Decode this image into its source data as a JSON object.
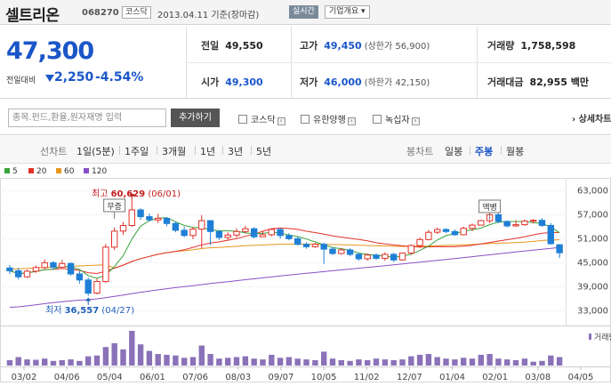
{
  "header": {
    "stock_name": "셀트리온",
    "stock_code": "068270",
    "market": "코스닥",
    "as_of": "2013.04.11 기준(장마감)",
    "realtime_button": "실시간",
    "company_button": "기업개요 ▾"
  },
  "quote": {
    "price": "47,300",
    "change_label": "전일대비",
    "change": "2,250",
    "change_pct": "-4.54%",
    "prev_close_label": "전일",
    "prev_close": "49,550",
    "high_label": "고가",
    "high": "49,450",
    "upper_limit": "(상한가 56,900)",
    "volume_label": "거래량",
    "volume": "1,758,598",
    "open_label": "시가",
    "open": "49,300",
    "low_label": "저가",
    "low": "46,000",
    "lower_limit": "(하한가 42,150)",
    "amount_label": "거래대금",
    "amount": "82,955 백만"
  },
  "compare": {
    "search_placeholder": "종목.펀드,환율,원자재명 입력",
    "add_button": "추가하기",
    "options": [
      {
        "label": "코스닥",
        "x": "ⓧ"
      },
      {
        "label": "유한양행",
        "x": "ⓧ"
      },
      {
        "label": "녹십자",
        "x": "ⓧ"
      }
    ],
    "detail_link": "상세차트"
  },
  "tabs": {
    "line_header": "선차트",
    "line": [
      "1일(5분)",
      "1주일",
      "3개월",
      "1년",
      "3년",
      "5년"
    ],
    "candle_header": "봉차트",
    "candle": [
      "일봉",
      "주봉",
      "월봉"
    ],
    "active": "주봉"
  },
  "legend": [
    {
      "label": "5",
      "color": "#3aa33a"
    },
    {
      "label": "20",
      "color": "#e0312a"
    },
    {
      "label": "60",
      "color": "#e8961e"
    },
    {
      "label": "120",
      "color": "#8a4fc8"
    }
  ],
  "chart_data": {
    "type": "candlestick",
    "y_ticks": [
      "63,000",
      "57,000",
      "51,000",
      "45,000",
      "39,000",
      "33,000"
    ],
    "ylim": [
      30000,
      66000
    ],
    "x_ticks": [
      "03/02",
      "04/06",
      "05/04",
      "06/01",
      "07/06",
      "08/03",
      "09/07",
      "10/05",
      "11/02",
      "12/07",
      "01/04",
      "02/01",
      "03/08",
      "04/05"
    ],
    "volume_label": "거래량",
    "annotations": {
      "high_label": "최고",
      "high_value": "60,629",
      "high_date": "(06/01)",
      "low_label": "최저",
      "low_value": "36,557",
      "low_date": "(04/27)",
      "event1": "무증",
      "event2": "액병"
    },
    "candles": [
      [
        43500,
        42800,
        44200,
        42000
      ],
      [
        42800,
        41300,
        43500,
        40600
      ],
      [
        41300,
        42700,
        43100,
        41000
      ],
      [
        42700,
        43600,
        44100,
        42300
      ],
      [
        43600,
        44800,
        45600,
        43200
      ],
      [
        44800,
        43700,
        45200,
        43000
      ],
      [
        43700,
        44600,
        45500,
        43300
      ],
      [
        44600,
        42000,
        44900,
        41600
      ],
      [
        42000,
        40500,
        42700,
        39600
      ],
      [
        40500,
        37200,
        41100,
        36557
      ],
      [
        37200,
        40100,
        40800,
        36900
      ],
      [
        40100,
        48700,
        49500,
        39800
      ],
      [
        48700,
        52700,
        53600,
        48000
      ],
      [
        52700,
        54100,
        55000,
        51800
      ],
      [
        54100,
        58000,
        60629,
        53800
      ],
      [
        58000,
        56300,
        58400,
        55500
      ],
      [
        56300,
        55500,
        57100,
        55100
      ],
      [
        55500,
        55900,
        57000,
        54700
      ],
      [
        55900,
        54600,
        56200,
        53900
      ],
      [
        54600,
        52900,
        55100,
        52400
      ],
      [
        52900,
        51600,
        53800,
        51200
      ],
      [
        51600,
        53200,
        53700,
        50700
      ],
      [
        53200,
        55300,
        56700,
        48400
      ],
      [
        55300,
        52600,
        55400,
        49200
      ],
      [
        52600,
        51100,
        53000,
        50500
      ],
      [
        51100,
        51700,
        52400,
        50400
      ],
      [
        51700,
        52600,
        53400,
        51100
      ],
      [
        52600,
        53300,
        54000,
        52100
      ],
      [
        53300,
        51300,
        53700,
        50900
      ],
      [
        51300,
        51800,
        52800,
        51300
      ],
      [
        51800,
        53100,
        53300,
        51400
      ],
      [
        53100,
        51600,
        53400,
        50800
      ],
      [
        51600,
        50800,
        52200,
        50400
      ],
      [
        50800,
        49400,
        51300,
        49100
      ],
      [
        49400,
        48800,
        49900,
        48300
      ],
      [
        48800,
        49400,
        49800,
        48500
      ],
      [
        49400,
        48200,
        49800,
        44500
      ],
      [
        48200,
        47100,
        48700,
        46700
      ],
      [
        47100,
        48000,
        48500,
        46800
      ],
      [
        48000,
        46900,
        48400,
        46400
      ],
      [
        46900,
        45800,
        47300,
        45300
      ],
      [
        45800,
        46700,
        47100,
        45300
      ],
      [
        46700,
        45900,
        47100,
        45500
      ],
      [
        45900,
        46900,
        47400,
        45300
      ],
      [
        46900,
        45500,
        47300,
        45000
      ],
      [
        45500,
        47200,
        47400,
        45300
      ],
      [
        47200,
        49100,
        49400,
        46800
      ],
      [
        49100,
        50600,
        51100,
        48500
      ],
      [
        50600,
        52400,
        53000,
        50400
      ],
      [
        52400,
        53100,
        53600,
        52000
      ],
      [
        53100,
        52600,
        53400,
        52200
      ],
      [
        52600,
        51800,
        53100,
        51500
      ],
      [
        51800,
        53400,
        53800,
        51700
      ],
      [
        53400,
        54200,
        54600,
        52700
      ],
      [
        54200,
        55300,
        55500,
        54300
      ],
      [
        55300,
        56800,
        57400,
        54700
      ],
      [
        56800,
        55100,
        57200,
        54700
      ],
      [
        55100,
        54000,
        55400,
        53600
      ],
      [
        54000,
        54300,
        55400,
        53800
      ],
      [
        54300,
        55200,
        55600,
        54000
      ],
      [
        55200,
        55400,
        55700,
        54600
      ],
      [
        55400,
        54100,
        55900,
        53800
      ],
      [
        54100,
        49550,
        54700,
        49300
      ],
      [
        49300,
        47300,
        49450,
        46000
      ]
    ],
    "volumes": [
      14,
      22,
      16,
      15,
      18,
      12,
      14,
      16,
      12,
      24,
      26,
      48,
      58,
      42,
      90,
      55,
      38,
      30,
      28,
      26,
      20,
      22,
      52,
      30,
      18,
      20,
      22,
      24,
      18,
      16,
      28,
      20,
      22,
      18,
      16,
      14,
      36,
      18,
      14,
      12,
      16,
      14,
      18,
      16,
      14,
      16,
      24,
      28,
      30,
      22,
      18,
      16,
      20,
      18,
      28,
      30,
      18,
      16,
      14,
      18,
      10,
      12,
      26,
      22
    ]
  }
}
